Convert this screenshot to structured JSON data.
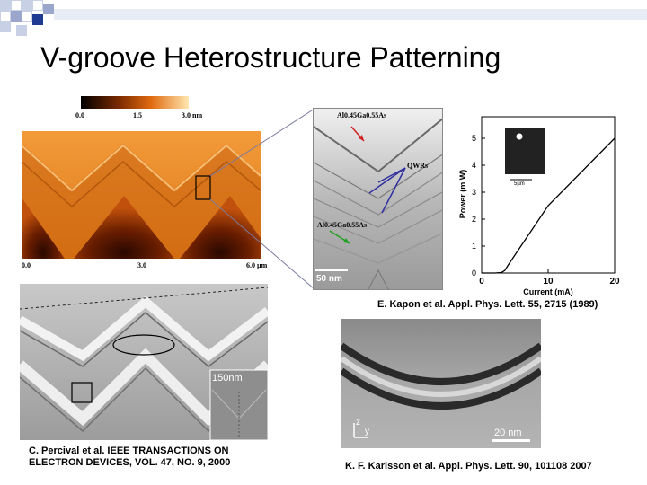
{
  "slide": {
    "title": "V-groove Heterostructure Patterning"
  },
  "afm": {
    "colorbar_ticks": [
      "0.0",
      "1.5",
      "3.0 nm"
    ],
    "x_ticks": [
      "0.0",
      "3.0",
      "6.0 µm"
    ]
  },
  "tem1": {
    "label_top": "Al0.45Ga0.55As",
    "label_qwr": "QWRs",
    "label_bottom": "Al0.45Ga0.55As",
    "scale": "50 nm"
  },
  "chart_data": {
    "type": "line",
    "x": [
      0,
      2,
      3,
      3.5,
      4,
      10,
      20
    ],
    "values": [
      0,
      0,
      0.02,
      0.1,
      0.3,
      2.5,
      5.0
    ],
    "xlabel": "Current (mA)",
    "ylabel": "Power (m W)",
    "x_ticks": [
      "0",
      "10",
      "20"
    ],
    "y_ticks": [
      "0",
      "1",
      "2",
      "3",
      "4",
      "5"
    ],
    "xlim": [
      0,
      20
    ],
    "ylim": [
      0,
      5.8
    ],
    "inset_scale": "5µm"
  },
  "captions": {
    "kapon": "E. Kapon et al. Appl. Phys. Lett. 55, 2715 (1989)",
    "percival_line1": "C. Percival et al. IEEE TRANSACTIONS ON",
    "percival_line2": "ELECTRON DEVICES, VOL. 47, NO. 9, 2000",
    "karlsson": "K. F. Karlsson et al. Appl. Phys. Lett. 90, 101108 2007"
  },
  "tem2": {
    "inset_scale": "150nm"
  },
  "tem3": {
    "axis_z": "z",
    "axis_y": "y",
    "scale": "20 nm"
  },
  "colors": {
    "accent_square": "#1f3a93",
    "light_square": "#c8d0e6"
  }
}
